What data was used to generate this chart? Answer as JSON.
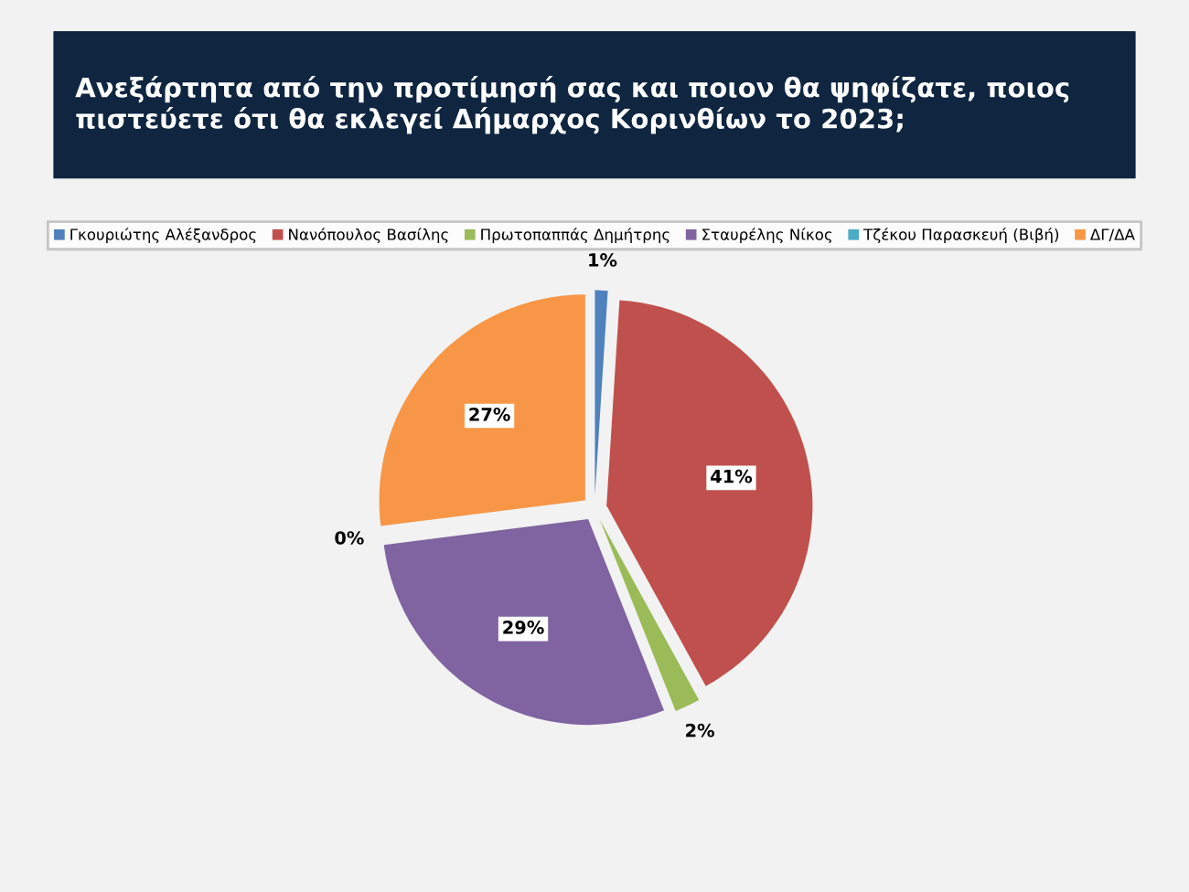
{
  "chart_data": {
    "type": "pie",
    "title": "Ανεξάρτητα από την προτίμησή σας και ποιον θα ψηφίζατε, ποιος πιστεύετε ότι θα εκλεγεί Δήμαρχος Κορινθίων το 2023;",
    "categories": [
      "Γκουριώτης Αλέξανδρος",
      "Νανόπουλος Βασίλης",
      "Πρωτοπαππάς Δημήτρης",
      "Σταυρέλης Νίκος",
      "Τζέκου Παρασκευή (Βιβή)",
      "ΔΓ/ΔΑ"
    ],
    "values": [
      1,
      41,
      2,
      29,
      0,
      27
    ],
    "value_labels": [
      "1%",
      "41%",
      "2%",
      "29%",
      "0%",
      "27%"
    ],
    "colors": [
      "#4f81bd",
      "#c0504d",
      "#9bbb59",
      "#8064a2",
      "#4bacc6",
      "#f79646"
    ],
    "legend": "top"
  }
}
